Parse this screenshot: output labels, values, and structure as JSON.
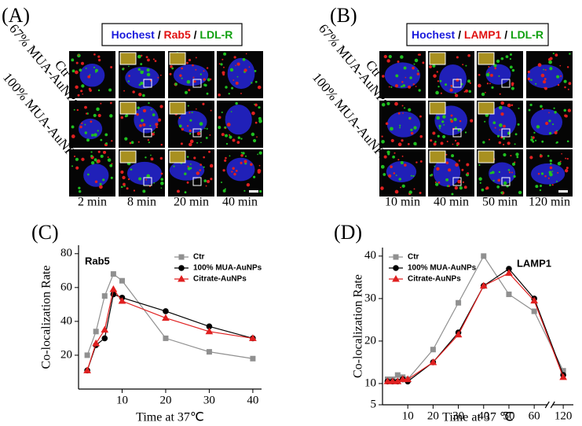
{
  "panels": [
    {
      "label": "(A)",
      "legend": [
        {
          "text": "Hochest",
          "color": "#1a1adc"
        },
        {
          "text": "/",
          "color": "#000000"
        },
        {
          "text": "Rab5",
          "color": "#e01010"
        },
        {
          "text": "/",
          "color": "#000000"
        },
        {
          "text": "LDL-R",
          "color": "#10a010"
        }
      ],
      "row_labels": [
        "Ctr",
        "67% MUA-AuNPs",
        "100% MUA-AuNPs"
      ],
      "columns": [
        "2 min",
        "8 min",
        "20 min",
        "40 min"
      ]
    },
    {
      "label": "(B)",
      "legend": [
        {
          "text": "Hochest",
          "color": "#1a1adc"
        },
        {
          "text": "/",
          "color": "#000000"
        },
        {
          "text": "LAMP1",
          "color": "#e01010"
        },
        {
          "text": "/",
          "color": "#000000"
        },
        {
          "text": "LDL-R",
          "color": "#10a010"
        }
      ],
      "row_labels": [
        "Ctr",
        "67% MUA-AuNPs",
        "100% MUA-AuNPs"
      ],
      "columns": [
        "10 min",
        "40 min",
        "50 min",
        "120 min"
      ]
    }
  ],
  "chart_data": [
    {
      "type": "line",
      "panel_label": "(C)",
      "annotation": "Rab5",
      "xlabel": "Time at 37℃",
      "ylabel": "Co-localization Rate",
      "x": [
        2,
        4,
        6,
        8,
        10,
        20,
        30,
        40
      ],
      "xlim": [
        0,
        42
      ],
      "xticks": [
        10,
        20,
        30,
        40
      ],
      "ylim": [
        0,
        85
      ],
      "yticks": [
        20,
        40,
        60,
        80
      ],
      "legend": "upper right",
      "series": [
        {
          "name": "Ctr",
          "color": "#909090",
          "marker": "square",
          "values": [
            20,
            34,
            55,
            68,
            64,
            30,
            22,
            18
          ]
        },
        {
          "name": "100% MUA-AuNPs",
          "color": "#000000",
          "marker": "circle",
          "values": [
            11,
            26,
            30,
            56,
            54,
            46,
            37,
            30
          ]
        },
        {
          "name": "Citrate-AuNPs",
          "color": "#e02020",
          "marker": "triangle",
          "values": [
            11,
            27,
            35,
            59,
            52,
            42,
            34,
            30
          ]
        }
      ]
    },
    {
      "type": "line",
      "panel_label": "(D)",
      "annotation": "LAMP1",
      "xlabel": "Time at 37 ℃",
      "ylabel": "Co-localization Rate",
      "x": [
        2,
        4,
        6,
        8,
        10,
        20,
        30,
        40,
        50,
        60,
        120
      ],
      "xlim": [
        0,
        124
      ],
      "xbreak": [
        65,
        116
      ],
      "xticks": [
        10,
        20,
        30,
        40,
        50,
        60,
        120
      ],
      "ylim": [
        5,
        42
      ],
      "yticks": [
        5,
        10,
        20,
        30,
        40
      ],
      "legend": "upper left",
      "series": [
        {
          "name": "Ctr",
          "color": "#909090",
          "marker": "square",
          "values": [
            11,
            11,
            12,
            11.5,
            11,
            18,
            29,
            40,
            31,
            27,
            13
          ]
        },
        {
          "name": "100% MUA-AuNPs",
          "color": "#000000",
          "marker": "circle",
          "values": [
            10.5,
            10.5,
            10.5,
            11,
            10.5,
            15,
            22,
            33,
            37,
            30,
            12
          ]
        },
        {
          "name": "Citrate-AuNPs",
          "color": "#e02020",
          "marker": "triangle",
          "values": [
            10.5,
            10.5,
            10.5,
            11,
            11,
            15,
            21.5,
            33,
            36,
            29.5,
            11.5
          ]
        }
      ]
    }
  ]
}
